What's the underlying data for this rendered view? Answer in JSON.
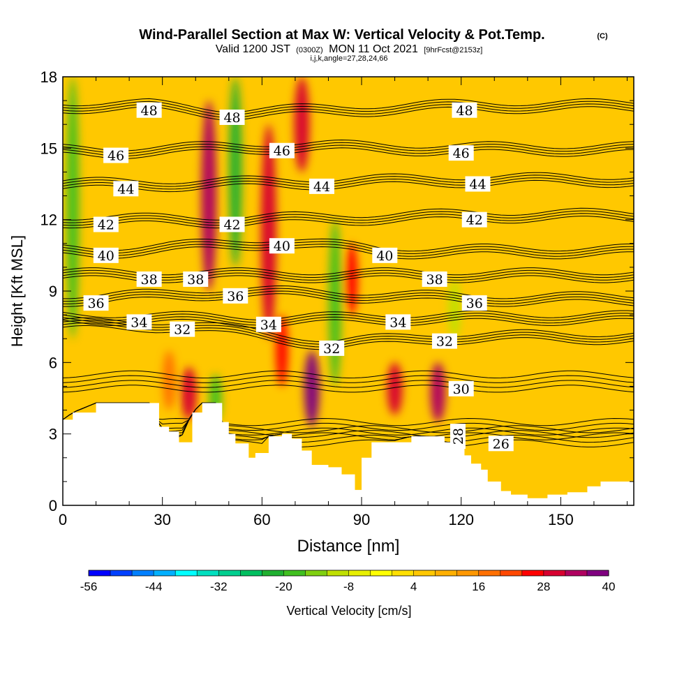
{
  "chart_data": {
    "type": "heatmap",
    "title": "Wind-Parallel Section at Max W: Vertical Velocity & Pot.Temp.",
    "title_mark": "(C)",
    "subtitle_valid": "Valid 1200 JST",
    "subtitle_utc": "(0300Z)",
    "subtitle_date": "MON 11 Oct 2021",
    "subtitle_fcst": "[9hrFcst@2153z]",
    "subtitle_indices": "i,j,k,angle=27,28,24,66",
    "xlabel": "Distance [nm]",
    "ylabel": "Height [Kft MSL]",
    "xlim": [
      0,
      172
    ],
    "ylim": [
      0,
      18
    ],
    "x_ticks": [
      {
        "value": 0,
        "label": "0"
      },
      {
        "value": 30,
        "label": "30"
      },
      {
        "value": 60,
        "label": "60"
      },
      {
        "value": 90,
        "label": "90"
      },
      {
        "value": 120,
        "label": "120"
      },
      {
        "value": 150,
        "label": "150"
      }
    ],
    "y_ticks": [
      {
        "value": 0,
        "label": "0"
      },
      {
        "value": 3,
        "label": "3"
      },
      {
        "value": 6,
        "label": "6"
      },
      {
        "value": 9,
        "label": "9"
      },
      {
        "value": 12,
        "label": "12"
      },
      {
        "value": 15,
        "label": "15"
      },
      {
        "value": 18,
        "label": "18"
      }
    ],
    "colorbar": {
      "label": "Vertical Velocity [cm/s]",
      "min": -56,
      "max": 40,
      "step": 4,
      "tick_labels": [
        {
          "value": -56,
          "label": "-56"
        },
        {
          "value": -44,
          "label": "-44"
        },
        {
          "value": -32,
          "label": "-32"
        },
        {
          "value": -20,
          "label": "-20"
        },
        {
          "value": -8,
          "label": "-8"
        },
        {
          "value": 4,
          "label": "4"
        },
        {
          "value": 16,
          "label": "16"
        },
        {
          "value": 28,
          "label": "28"
        },
        {
          "value": 40,
          "label": "40"
        }
      ],
      "colors": [
        "#0000ff",
        "#0040ff",
        "#0080ff",
        "#00b0ff",
        "#00ffff",
        "#00e0c0",
        "#00d090",
        "#00c060",
        "#20b030",
        "#40c020",
        "#80d010",
        "#c0e000",
        "#e8f000",
        "#ffff00",
        "#ffe000",
        "#ffc800",
        "#ffb000",
        "#ff9800",
        "#ff7000",
        "#ff4800",
        "#ff0000",
        "#d80030",
        "#b00060",
        "#800080"
      ]
    },
    "terrain": [
      [
        0,
        3.6
      ],
      [
        3,
        3.9
      ],
      [
        10,
        4.3
      ],
      [
        26,
        4.3
      ],
      [
        29,
        3.3
      ],
      [
        32,
        3.1
      ],
      [
        35,
        2.65
      ],
      [
        39,
        3.9
      ],
      [
        42,
        4.3
      ],
      [
        46,
        4.3
      ],
      [
        48,
        3.5
      ],
      [
        50,
        3.0
      ],
      [
        52,
        2.6
      ],
      [
        56,
        2.0
      ],
      [
        58,
        2.2
      ],
      [
        62,
        2.9
      ],
      [
        66,
        3.0
      ],
      [
        69,
        2.8
      ],
      [
        72,
        2.3
      ],
      [
        75,
        1.7
      ],
      [
        80,
        1.6
      ],
      [
        84,
        1.3
      ],
      [
        88,
        0.65
      ],
      [
        90,
        2.0
      ],
      [
        93,
        2.65
      ],
      [
        98,
        2.65
      ],
      [
        105,
        2.9
      ],
      [
        110,
        2.9
      ],
      [
        115,
        2.65
      ],
      [
        118,
        2.4
      ],
      [
        121,
        2.1
      ],
      [
        123,
        1.75
      ],
      [
        126,
        1.5
      ],
      [
        128,
        1.0
      ],
      [
        132,
        0.6
      ],
      [
        135,
        0.45
      ],
      [
        140,
        0.3
      ],
      [
        146,
        0.45
      ],
      [
        152,
        0.55
      ],
      [
        158,
        0.8
      ],
      [
        162,
        1.0
      ],
      [
        172,
        1.0
      ]
    ],
    "vertical_velocity_features": [
      {
        "x": 3,
        "y": [
          7,
          18
        ],
        "w": -20
      },
      {
        "x": 32,
        "y": [
          4,
          6.5
        ],
        "w": 16
      },
      {
        "x": 38,
        "y": [
          3.6,
          5.8
        ],
        "w": 28
      },
      {
        "x": 44,
        "y": [
          9,
          17
        ],
        "w": 34
      },
      {
        "x": 46,
        "y": [
          3.5,
          5.5
        ],
        "w": -20
      },
      {
        "x": 52,
        "y": [
          10,
          18
        ],
        "w": -24
      },
      {
        "x": 62,
        "y": [
          7,
          16
        ],
        "w": 28
      },
      {
        "x": 66,
        "y": [
          5,
          8
        ],
        "w": 24
      },
      {
        "x": 72,
        "y": [
          14,
          18
        ],
        "w": 28
      },
      {
        "x": 75,
        "y": [
          3.3,
          6.5
        ],
        "w": 40
      },
      {
        "x": 82,
        "y": [
          5,
          12
        ],
        "w": -20
      },
      {
        "x": 87,
        "y": [
          8,
          11
        ],
        "w": 24
      },
      {
        "x": 100,
        "y": [
          3.8,
          6
        ],
        "w": 28
      },
      {
        "x": 113,
        "y": [
          3.5,
          6
        ],
        "w": 32
      },
      {
        "x": 118,
        "y": [
          7,
          9.5
        ],
        "w": -12
      }
    ],
    "potential_temperature_labels": [
      {
        "value": "48",
        "x": 26,
        "y": 16.6
      },
      {
        "value": "48",
        "x": 51,
        "y": 16.3
      },
      {
        "value": "48",
        "x": 121,
        "y": 16.6
      },
      {
        "value": "46",
        "x": 16,
        "y": 14.7
      },
      {
        "value": "46",
        "x": 66,
        "y": 14.9
      },
      {
        "value": "46",
        "x": 120,
        "y": 14.8
      },
      {
        "value": "44",
        "x": 19,
        "y": 13.3
      },
      {
        "value": "44",
        "x": 78,
        "y": 13.4
      },
      {
        "value": "44",
        "x": 125,
        "y": 13.5
      },
      {
        "value": "42",
        "x": 13,
        "y": 11.8
      },
      {
        "value": "42",
        "x": 51,
        "y": 11.8
      },
      {
        "value": "42",
        "x": 124,
        "y": 12.0
      },
      {
        "value": "40",
        "x": 13,
        "y": 10.5
      },
      {
        "value": "40",
        "x": 66,
        "y": 10.9
      },
      {
        "value": "40",
        "x": 97,
        "y": 10.5
      },
      {
        "value": "38",
        "x": 26,
        "y": 9.5
      },
      {
        "value": "38",
        "x": 40,
        "y": 9.5
      },
      {
        "value": "38",
        "x": 112,
        "y": 9.5
      },
      {
        "value": "36",
        "x": 10,
        "y": 8.5
      },
      {
        "value": "36",
        "x": 52,
        "y": 8.8
      },
      {
        "value": "36",
        "x": 124,
        "y": 8.5
      },
      {
        "value": "34",
        "x": 23,
        "y": 7.7
      },
      {
        "value": "34",
        "x": 62,
        "y": 7.6
      },
      {
        "value": "34",
        "x": 101,
        "y": 7.7
      },
      {
        "value": "32",
        "x": 36,
        "y": 7.4
      },
      {
        "value": "32",
        "x": 81,
        "y": 6.6
      },
      {
        "value": "32",
        "x": 115,
        "y": 6.9
      },
      {
        "value": "30",
        "x": 120,
        "y": 4.9
      },
      {
        "value": "28",
        "x": 119,
        "y": 2.9
      },
      {
        "value": "26",
        "x": 132,
        "y": 2.6
      }
    ]
  }
}
